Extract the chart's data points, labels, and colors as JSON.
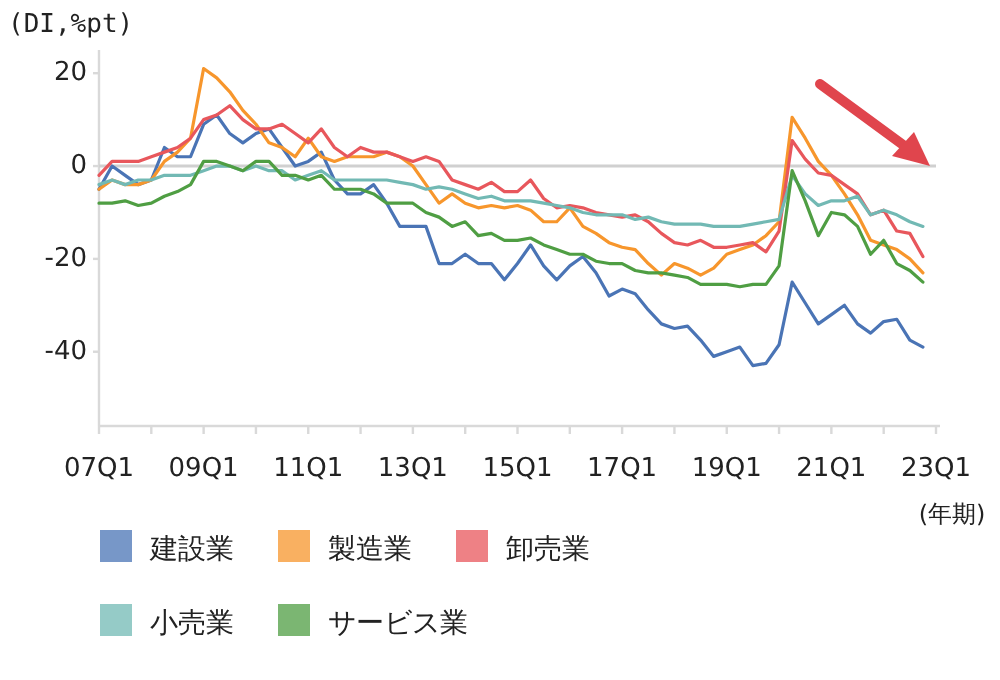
{
  "chart_data": {
    "type": "line",
    "ylabel": "(DI,%pt)",
    "xlabel": "(年期)",
    "categories": [
      "07Q1",
      null,
      null,
      null,
      null,
      null,
      null,
      null,
      "09Q1",
      null,
      null,
      null,
      null,
      null,
      null,
      null,
      "11Q1",
      null,
      null,
      null,
      null,
      null,
      null,
      null,
      "13Q1",
      null,
      null,
      null,
      null,
      null,
      null,
      null,
      "15Q1",
      null,
      null,
      null,
      null,
      null,
      null,
      null,
      "17Q1",
      null,
      null,
      null,
      null,
      null,
      null,
      null,
      "19Q1",
      null,
      null,
      null,
      null,
      null,
      null,
      null,
      "21Q1",
      null,
      null,
      null,
      null,
      null,
      null,
      null,
      "23Q1"
    ],
    "series": [
      {
        "name": "建設業",
        "color": "#4a74b5",
        "values": [
          -5,
          0,
          -2,
          -4,
          -3,
          4,
          2,
          2,
          9,
          11,
          7,
          5,
          7,
          8,
          4,
          0,
          1,
          3,
          -3,
          -6,
          -6,
          -4,
          -8,
          -13,
          -13,
          -13,
          -21,
          -21,
          -19,
          -21,
          -21,
          -24.5,
          -21,
          -17,
          -21.5,
          -24.5,
          -21.5,
          -19.5,
          -23,
          -28,
          -26.5,
          -27.5,
          -31,
          -34,
          -35,
          -34.5,
          -37.5,
          -41,
          -40,
          -39,
          -43,
          -42.5,
          -38.5,
          -25,
          -29.5,
          -34,
          -32,
          -30,
          -34,
          -36,
          -33.5,
          -33,
          -37.5,
          -39,
          null
        ]
      },
      {
        "name": "製造業",
        "color": "#f7962c",
        "values": [
          -5,
          -3,
          -4,
          -4,
          -3,
          1,
          3,
          6,
          21,
          19,
          16,
          12,
          9,
          5,
          4,
          2,
          6,
          2,
          1,
          2,
          2,
          2,
          3,
          2,
          0,
          -4,
          -8,
          -6,
          -8,
          -9,
          -8.5,
          -9,
          -8.5,
          -9.5,
          -12,
          -12,
          -9,
          -13,
          -14.5,
          -16.5,
          -17.5,
          -18,
          -21,
          -23.5,
          -21,
          -22,
          -23.5,
          -22,
          -19,
          -18,
          -17,
          -15,
          -12,
          10.5,
          6,
          1,
          -2,
          -6,
          -10.5,
          -16,
          -17,
          -18,
          -20,
          -23,
          null
        ]
      },
      {
        "name": "卸売業",
        "color": "#e8575c",
        "values": [
          -2,
          1,
          1,
          1,
          2,
          3,
          4,
          6,
          10,
          11,
          13,
          10,
          8,
          8,
          9,
          7,
          5,
          8,
          4,
          2,
          4,
          3,
          3,
          2,
          1,
          2,
          1,
          -3,
          -4,
          -5,
          -3.5,
          -5.5,
          -5.5,
          -3,
          -7,
          -9,
          -8.5,
          -9,
          -10,
          -10.5,
          -11,
          -10.5,
          -12,
          -14.5,
          -16.5,
          -17,
          -16,
          -17.5,
          -17.5,
          -17,
          -16.5,
          -18.5,
          -14,
          5.5,
          1.5,
          -1.5,
          -2,
          -4,
          -6,
          -10.5,
          -9.5,
          -14,
          -14.5,
          -19.5,
          null
        ]
      },
      {
        "name": "小売業",
        "color": "#72b9b4",
        "values": [
          -4,
          -3,
          -4,
          -3,
          -3,
          -2,
          -2,
          -2,
          -1,
          0,
          0,
          -1,
          0,
          -1,
          -1,
          -3,
          -2,
          -1,
          -3,
          -3,
          -3,
          -3,
          -3,
          -3.5,
          -4,
          -5,
          -4.5,
          -5,
          -6,
          -7,
          -6.5,
          -7.5,
          -7.5,
          -7.5,
          -8,
          -8.5,
          -9,
          -10,
          -10.5,
          -10.5,
          -10.5,
          -11.5,
          -11,
          -12,
          -12.5,
          -12.5,
          -12.5,
          -13,
          -13,
          -13,
          -12.5,
          -12,
          -11.5,
          -2,
          -6,
          -8.5,
          -7.5,
          -7.5,
          -6.5,
          -10.5,
          -9.5,
          -10.5,
          -12,
          -13,
          null
        ]
      },
      {
        "name": "サービス業",
        "color": "#4f9e43",
        "values": [
          -8,
          -8,
          -7.5,
          -8.5,
          -8,
          -6.5,
          -5.5,
          -4,
          1,
          1,
          0,
          -1,
          1,
          1,
          -2,
          -2,
          -3,
          -2,
          -5,
          -5,
          -5,
          -6,
          -8,
          -8,
          -8,
          -10,
          -11,
          -13,
          -12,
          -15,
          -14.5,
          -16,
          -16,
          -15.5,
          -17,
          -18,
          -19,
          -19,
          -20.5,
          -21,
          -21,
          -22.5,
          -23,
          -23,
          -23.5,
          -24,
          -25.5,
          -25.5,
          -25.5,
          -26,
          -25.5,
          -25.5,
          -21.5,
          -1,
          -7.5,
          -15,
          -10,
          -10.5,
          -13,
          -19,
          -16,
          -21,
          -22.5,
          -25,
          null
        ]
      }
    ],
    "ylim": [
      -56,
      25
    ],
    "yticks": [
      20,
      0,
      -20,
      -40
    ],
    "ref_lines": [
      {
        "axis": "y",
        "value": 0,
        "color": "#d0d0d0"
      }
    ],
    "legend": "bottom",
    "marker": "none",
    "line_style": "solid"
  }
}
